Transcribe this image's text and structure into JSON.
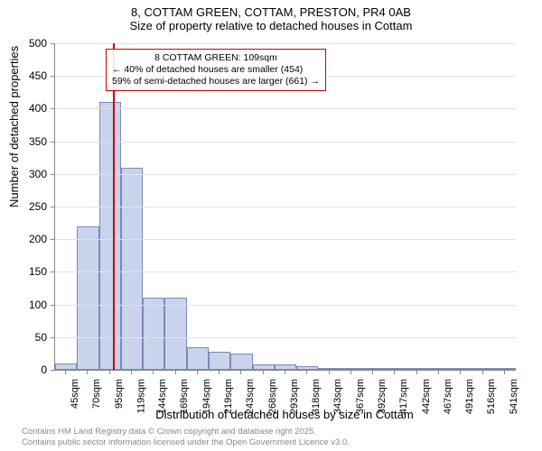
{
  "title": {
    "line1": "8, COTTAM GREEN, COTTAM, PRESTON, PR4 0AB",
    "line2": "Size of property relative to detached houses in Cottam"
  },
  "chart": {
    "type": "histogram",
    "ylim": [
      0,
      500
    ],
    "ytick_step": 50,
    "y_axis_label": "Number of detached properties",
    "x_axis_label": "Distribution of detached houses by size in Cottam",
    "bar_color": "#c9d4ec",
    "bar_border_color": "#7a8ab8",
    "grid_color": "#e0e0e0",
    "background_color": "#ffffff",
    "reference_line_color": "#cc0000",
    "reference_line_x": 109,
    "x_categories": [
      "45sqm",
      "70sqm",
      "95sqm",
      "119sqm",
      "144sqm",
      "169sqm",
      "194sqm",
      "219sqm",
      "243sqm",
      "268sqm",
      "293sqm",
      "318sqm",
      "343sqm",
      "367sqm",
      "392sqm",
      "417sqm",
      "442sqm",
      "467sqm",
      "491sqm",
      "516sqm",
      "541sqm"
    ],
    "bars": [
      {
        "value": 10
      },
      {
        "value": 220
      },
      {
        "value": 410
      },
      {
        "value": 310
      },
      {
        "value": 110
      },
      {
        "value": 110
      },
      {
        "value": 35
      },
      {
        "value": 28
      },
      {
        "value": 25
      },
      {
        "value": 8
      },
      {
        "value": 8
      },
      {
        "value": 5
      },
      {
        "value": 3
      },
      {
        "value": 3
      },
      {
        "value": 2
      },
      {
        "value": 2
      },
      {
        "value": 1
      },
      {
        "value": 1
      },
      {
        "value": 0
      },
      {
        "value": 0
      },
      {
        "value": 1
      }
    ],
    "annotation": {
      "line1": "8 COTTAM GREEN: 109sqm",
      "line2": "← 40% of detached houses are smaller (454)",
      "line3": "59% of semi-detached houses are larger (661) →"
    }
  },
  "footer": {
    "line1": "Contains HM Land Registry data © Crown copyright and database right 2025.",
    "line2": "Contains public sector information licensed under the Open Government Licence v3.0."
  }
}
